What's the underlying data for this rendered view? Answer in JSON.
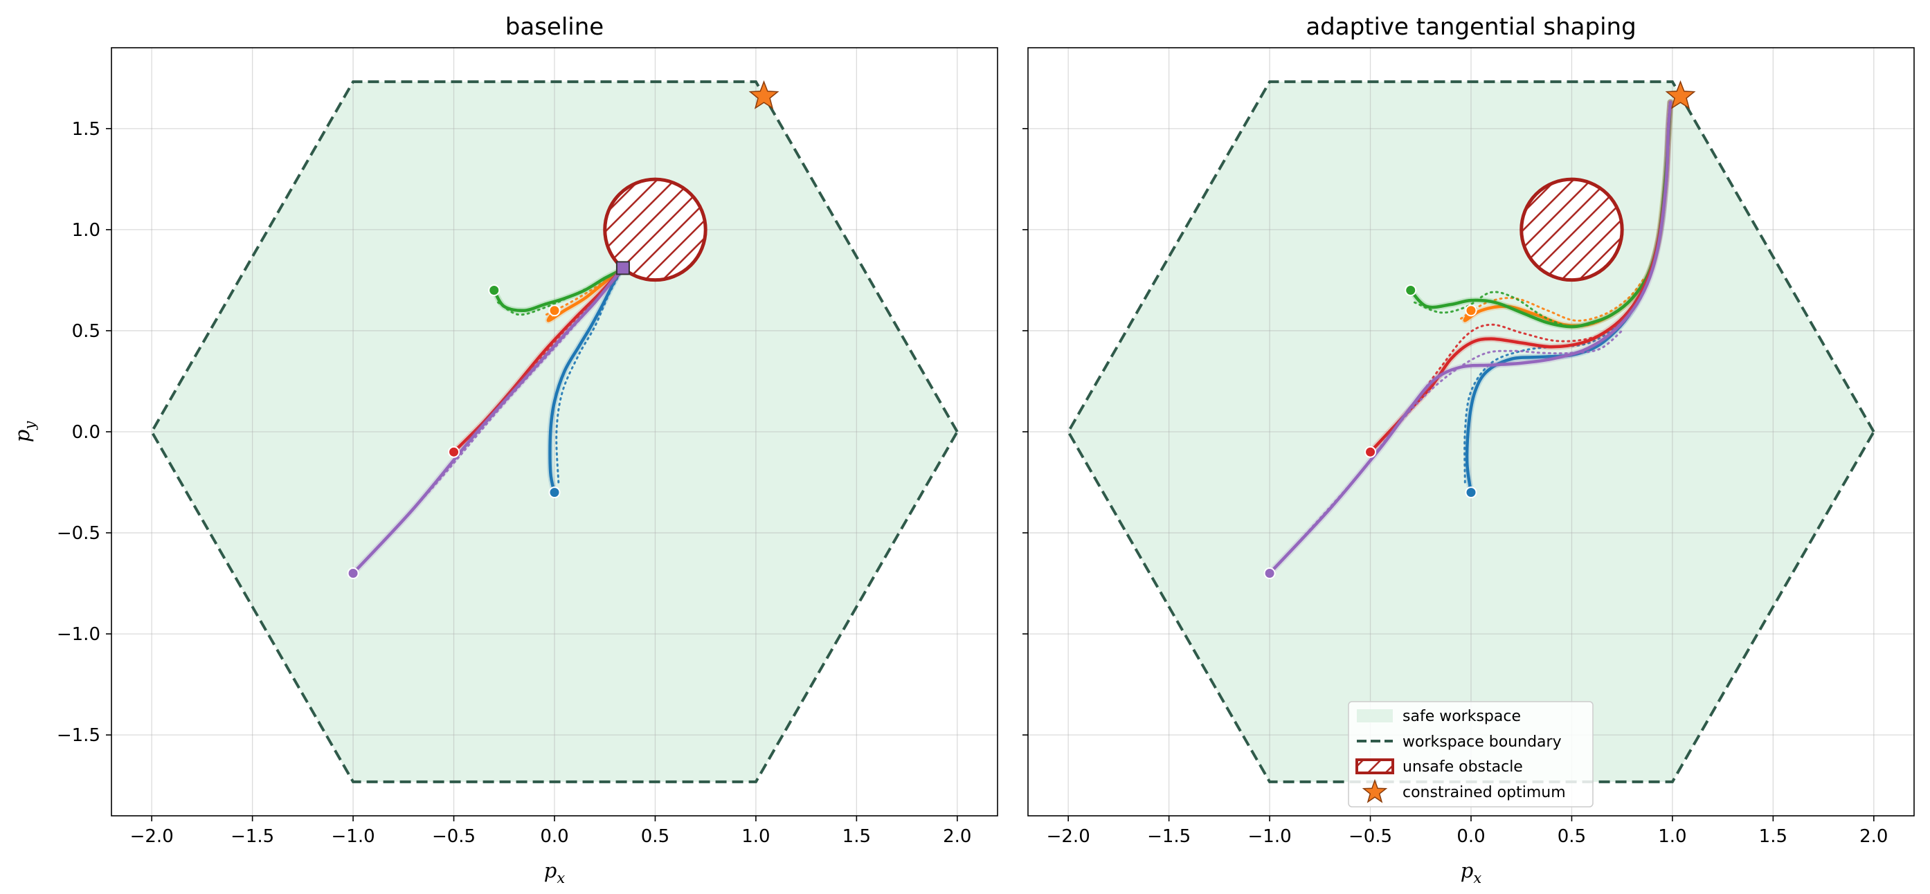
{
  "chart_data": [
    {
      "type": "line",
      "title": "baseline",
      "xlabel": "p_x",
      "ylabel": "p_y",
      "xlim": [
        -2.2,
        2.2
      ],
      "ylim": [
        -1.9,
        1.9
      ],
      "xticks": [
        "−2.0",
        "−1.5",
        "−1.0",
        "−0.5",
        "0.0",
        "0.5",
        "1.0",
        "1.5",
        "2.0"
      ],
      "xtick_values": [
        -2.0,
        -1.5,
        -1.0,
        -0.5,
        0.0,
        0.5,
        1.0,
        1.5,
        2.0
      ],
      "yticks": [
        "−1.5",
        "−1.0",
        "−0.5",
        "0.0",
        "0.5",
        "1.0",
        "1.5"
      ],
      "ytick_values": [
        -1.5,
        -1.0,
        -0.5,
        0.0,
        0.5,
        1.0,
        1.5
      ],
      "grid": true,
      "workspace_hexagon": [
        [
          2.0,
          0.0
        ],
        [
          1.0,
          1.732
        ],
        [
          -1.0,
          1.732
        ],
        [
          -2.0,
          0.0
        ],
        [
          -1.0,
          -1.732
        ],
        [
          1.0,
          -1.732
        ]
      ],
      "obstacle": {
        "center": [
          0.5,
          1.0
        ],
        "radius": 0.25
      },
      "constrained_optimum": [
        1.04,
        1.66
      ],
      "final_marker": [
        0.34,
        0.81
      ],
      "series": [
        {
          "color": "#1f77b4",
          "start": [
            0.0,
            -0.3
          ],
          "solid": [
            [
              0.0,
              -0.3
            ],
            [
              -0.02,
              -0.2
            ],
            [
              -0.02,
              0.0
            ],
            [
              0.0,
              0.15
            ],
            [
              0.05,
              0.3
            ],
            [
              0.12,
              0.42
            ],
            [
              0.18,
              0.52
            ],
            [
              0.24,
              0.63
            ],
            [
              0.29,
              0.73
            ],
            [
              0.33,
              0.8
            ]
          ],
          "dotted": [
            [
              0.02,
              -0.25
            ],
            [
              0.01,
              0.0
            ],
            [
              0.04,
              0.2
            ],
            [
              0.12,
              0.38
            ],
            [
              0.2,
              0.52
            ],
            [
              0.27,
              0.68
            ],
            [
              0.33,
              0.79
            ]
          ]
        },
        {
          "color": "#ff7f0e",
          "start": [
            0.0,
            0.6
          ],
          "solid": [
            [
              0.0,
              0.6
            ],
            [
              -0.03,
              0.55
            ],
            [
              0.05,
              0.6
            ],
            [
              0.15,
              0.66
            ],
            [
              0.25,
              0.74
            ],
            [
              0.33,
              0.8
            ]
          ],
          "dotted": [
            [
              -0.04,
              0.58
            ],
            [
              0.06,
              0.63
            ],
            [
              0.18,
              0.7
            ],
            [
              0.33,
              0.8
            ]
          ]
        },
        {
          "color": "#2ca02c",
          "start": [
            -0.3,
            0.7
          ],
          "solid": [
            [
              -0.3,
              0.7
            ],
            [
              -0.25,
              0.62
            ],
            [
              -0.15,
              0.6
            ],
            [
              -0.05,
              0.63
            ],
            [
              0.05,
              0.66
            ],
            [
              0.15,
              0.7
            ],
            [
              0.25,
              0.76
            ],
            [
              0.33,
              0.8
            ]
          ],
          "dotted": [
            [
              -0.28,
              0.64
            ],
            [
              -0.18,
              0.58
            ],
            [
              -0.06,
              0.61
            ],
            [
              0.08,
              0.67
            ],
            [
              0.2,
              0.73
            ],
            [
              0.33,
              0.8
            ]
          ]
        },
        {
          "color": "#d62728",
          "start": [
            -0.5,
            -0.1
          ],
          "solid": [
            [
              -0.5,
              -0.1
            ],
            [
              -0.35,
              0.05
            ],
            [
              -0.2,
              0.22
            ],
            [
              -0.05,
              0.4
            ],
            [
              0.1,
              0.56
            ],
            [
              0.22,
              0.68
            ],
            [
              0.33,
              0.8
            ]
          ],
          "dotted": [
            [
              -0.48,
              -0.08
            ],
            [
              -0.3,
              0.1
            ],
            [
              -0.12,
              0.3
            ],
            [
              0.05,
              0.5
            ],
            [
              0.2,
              0.65
            ],
            [
              0.33,
              0.79
            ]
          ]
        },
        {
          "color": "#9467bd",
          "start": [
            -1.0,
            -0.7
          ],
          "solid": [
            [
              -1.0,
              -0.7
            ],
            [
              -0.7,
              -0.38
            ],
            [
              -0.4,
              -0.02
            ],
            [
              -0.15,
              0.26
            ],
            [
              0.05,
              0.48
            ],
            [
              0.2,
              0.64
            ],
            [
              0.33,
              0.8
            ]
          ],
          "dotted": [
            [
              -0.98,
              -0.68
            ],
            [
              -0.6,
              -0.27
            ],
            [
              -0.25,
              0.14
            ],
            [
              0.05,
              0.47
            ],
            [
              0.33,
              0.79
            ]
          ]
        }
      ]
    },
    {
      "type": "line",
      "title": "adaptive tangential shaping",
      "xlabel": "p_x",
      "ylabel": "",
      "xlim": [
        -2.2,
        2.2
      ],
      "ylim": [
        -1.9,
        1.9
      ],
      "xticks": [
        "−2.0",
        "−1.5",
        "−1.0",
        "−0.5",
        "0.0",
        "0.5",
        "1.0",
        "1.5",
        "2.0"
      ],
      "xtick_values": [
        -2.0,
        -1.5,
        -1.0,
        -0.5,
        0.0,
        0.5,
        1.0,
        1.5,
        2.0
      ],
      "yticks": [],
      "ytick_values": [
        -1.5,
        -1.0,
        -0.5,
        0.0,
        0.5,
        1.0,
        1.5
      ],
      "grid": true,
      "workspace_hexagon": [
        [
          2.0,
          0.0
        ],
        [
          1.0,
          1.732
        ],
        [
          -1.0,
          1.732
        ],
        [
          -2.0,
          0.0
        ],
        [
          -1.0,
          -1.732
        ],
        [
          1.0,
          -1.732
        ]
      ],
      "obstacle": {
        "center": [
          0.5,
          1.0
        ],
        "radius": 0.25
      },
      "constrained_optimum": [
        1.04,
        1.66
      ],
      "series": [
        {
          "color": "#1f77b4",
          "start": [
            0.0,
            -0.3
          ],
          "solid": [
            [
              0.0,
              -0.3
            ],
            [
              -0.02,
              -0.15
            ],
            [
              -0.01,
              0.05
            ],
            [
              0.02,
              0.2
            ],
            [
              0.08,
              0.3
            ],
            [
              0.2,
              0.36
            ],
            [
              0.35,
              0.37
            ],
            [
              0.5,
              0.38
            ],
            [
              0.62,
              0.42
            ],
            [
              0.72,
              0.5
            ],
            [
              0.8,
              0.6
            ],
            [
              0.86,
              0.72
            ],
            [
              0.91,
              0.86
            ],
            [
              0.95,
              1.05
            ],
            [
              0.97,
              1.3
            ],
            [
              0.98,
              1.5
            ],
            [
              0.99,
              1.63
            ]
          ],
          "dotted": [
            [
              -0.03,
              -0.25
            ],
            [
              -0.03,
              0.0
            ],
            [
              0.0,
              0.2
            ],
            [
              0.1,
              0.34
            ],
            [
              0.25,
              0.4
            ],
            [
              0.4,
              0.42
            ],
            [
              0.55,
              0.43
            ],
            [
              0.65,
              0.47
            ],
            [
              0.75,
              0.55
            ],
            [
              0.83,
              0.66
            ],
            [
              0.9,
              0.82
            ]
          ]
        },
        {
          "color": "#ff7f0e",
          "start": [
            0.0,
            0.6
          ],
          "solid": [
            [
              0.0,
              0.6
            ],
            [
              -0.03,
              0.55
            ],
            [
              0.05,
              0.6
            ],
            [
              0.18,
              0.62
            ],
            [
              0.32,
              0.58
            ],
            [
              0.46,
              0.53
            ],
            [
              0.58,
              0.53
            ],
            [
              0.7,
              0.58
            ],
            [
              0.8,
              0.66
            ],
            [
              0.88,
              0.78
            ],
            [
              0.93,
              0.95
            ],
            [
              0.96,
              1.2
            ],
            [
              0.98,
              1.45
            ],
            [
              0.99,
              1.63
            ]
          ],
          "dotted": [
            [
              -0.05,
              0.56
            ],
            [
              0.08,
              0.64
            ],
            [
              0.22,
              0.66
            ],
            [
              0.38,
              0.6
            ],
            [
              0.52,
              0.55
            ],
            [
              0.66,
              0.58
            ],
            [
              0.78,
              0.66
            ],
            [
              0.86,
              0.76
            ]
          ]
        },
        {
          "color": "#2ca02c",
          "start": [
            -0.3,
            0.7
          ],
          "solid": [
            [
              -0.3,
              0.7
            ],
            [
              -0.22,
              0.62
            ],
            [
              -0.1,
              0.63
            ],
            [
              0.0,
              0.65
            ],
            [
              0.12,
              0.64
            ],
            [
              0.25,
              0.59
            ],
            [
              0.38,
              0.54
            ],
            [
              0.5,
              0.52
            ],
            [
              0.6,
              0.54
            ],
            [
              0.7,
              0.58
            ],
            [
              0.8,
              0.66
            ],
            [
              0.88,
              0.78
            ],
            [
              0.93,
              0.95
            ],
            [
              0.96,
              1.2
            ],
            [
              0.98,
              1.45
            ],
            [
              0.99,
              1.63
            ]
          ],
          "dotted": [
            [
              -0.28,
              0.64
            ],
            [
              -0.15,
              0.59
            ],
            [
              -0.02,
              0.62
            ],
            [
              0.1,
              0.69
            ],
            [
              0.22,
              0.66
            ],
            [
              0.36,
              0.57
            ],
            [
              0.5,
              0.52
            ],
            [
              0.64,
              0.55
            ],
            [
              0.76,
              0.62
            ]
          ]
        },
        {
          "color": "#d62728",
          "start": [
            -0.5,
            -0.1
          ],
          "solid": [
            [
              -0.5,
              -0.1
            ],
            [
              -0.35,
              0.06
            ],
            [
              -0.2,
              0.22
            ],
            [
              -0.1,
              0.36
            ],
            [
              0.0,
              0.44
            ],
            [
              0.1,
              0.46
            ],
            [
              0.25,
              0.44
            ],
            [
              0.4,
              0.42
            ],
            [
              0.55,
              0.44
            ],
            [
              0.66,
              0.49
            ],
            [
              0.76,
              0.57
            ],
            [
              0.84,
              0.68
            ],
            [
              0.9,
              0.82
            ],
            [
              0.94,
              1.0
            ],
            [
              0.97,
              1.25
            ],
            [
              0.98,
              1.5
            ],
            [
              0.99,
              1.63
            ]
          ],
          "dotted": [
            [
              -0.47,
              -0.07
            ],
            [
              -0.3,
              0.12
            ],
            [
              -0.15,
              0.32
            ],
            [
              -0.02,
              0.48
            ],
            [
              0.1,
              0.53
            ],
            [
              0.25,
              0.49
            ],
            [
              0.42,
              0.45
            ],
            [
              0.58,
              0.46
            ],
            [
              0.7,
              0.51
            ],
            [
              0.8,
              0.6
            ]
          ]
        },
        {
          "color": "#9467bd",
          "start": [
            -1.0,
            -0.7
          ],
          "solid": [
            [
              -1.0,
              -0.7
            ],
            [
              -0.7,
              -0.38
            ],
            [
              -0.45,
              -0.08
            ],
            [
              -0.3,
              0.12
            ],
            [
              -0.18,
              0.26
            ],
            [
              -0.05,
              0.32
            ],
            [
              0.1,
              0.33
            ],
            [
              0.25,
              0.34
            ],
            [
              0.4,
              0.36
            ],
            [
              0.55,
              0.4
            ],
            [
              0.66,
              0.46
            ],
            [
              0.76,
              0.55
            ],
            [
              0.84,
              0.66
            ],
            [
              0.9,
              0.8
            ],
            [
              0.94,
              0.98
            ],
            [
              0.97,
              1.25
            ],
            [
              0.98,
              1.5
            ],
            [
              0.99,
              1.63
            ]
          ],
          "dotted": [
            [
              -0.97,
              -0.67
            ],
            [
              -0.6,
              -0.26
            ],
            [
              -0.35,
              0.05
            ],
            [
              -0.15,
              0.25
            ],
            [
              0.05,
              0.38
            ],
            [
              0.2,
              0.4
            ],
            [
              0.36,
              0.39
            ],
            [
              0.5,
              0.39
            ],
            [
              0.64,
              0.41
            ],
            [
              0.75,
              0.5
            ]
          ]
        }
      ],
      "legend": {
        "placement": "lower-center",
        "entries": [
          "safe workspace",
          "workspace boundary",
          "unsafe obstacle",
          "constrained optimum"
        ]
      }
    }
  ],
  "colors": {
    "workspace_fill": "#e2f3e8",
    "workspace_boundary": "#2f5a4a",
    "obstacle": "#a8201a",
    "optimum": "#f57c20",
    "final_marker": "#9467bd"
  }
}
